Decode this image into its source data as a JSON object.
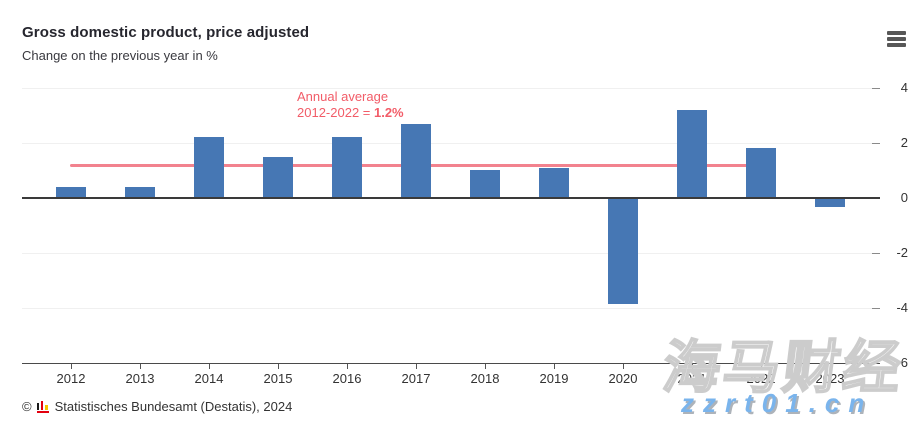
{
  "header": {
    "title": "Gross domestic product, price adjusted",
    "subtitle": "Change on the previous year in %",
    "menu_icon": "hamburger-menu"
  },
  "chart_data": {
    "type": "bar",
    "title": "Gross domestic product, price adjusted",
    "subtitle": "Change on the previous year in %",
    "categories": [
      "2012",
      "2013",
      "2014",
      "2015",
      "2016",
      "2017",
      "2018",
      "2019",
      "2020",
      "2021",
      "2022",
      "2023"
    ],
    "values": [
      0.4,
      0.4,
      2.2,
      1.5,
      2.2,
      2.7,
      1.0,
      1.1,
      -3.8,
      3.2,
      1.8,
      -0.3
    ],
    "unit": "%",
    "ylim": [
      -6,
      4
    ],
    "yticks": [
      4,
      2,
      0,
      -2,
      -4,
      -6
    ],
    "ytick_labels": [
      "4",
      "2",
      "0",
      "-2",
      "-4",
      "-6"
    ],
    "grid": true,
    "legend": "none",
    "bar_color": "#4677b4",
    "average_line": {
      "value": 1.2,
      "color": "#f2828e",
      "span": [
        "2012",
        "2022"
      ],
      "label_line1": "Annual average",
      "label_line2_prefix": "2012-2022 = ",
      "label_value": "1.2%",
      "label_color": "#f25c68"
    }
  },
  "footer": {
    "copyright_symbol": "©",
    "logo": "destatis-logo",
    "source": "Statistisches Bundesamt (Destatis), 2024"
  },
  "watermark": {
    "cjk_text": "海马财经",
    "url_text": "zzrt01.cn",
    "url_color": "#7ab4ec"
  }
}
